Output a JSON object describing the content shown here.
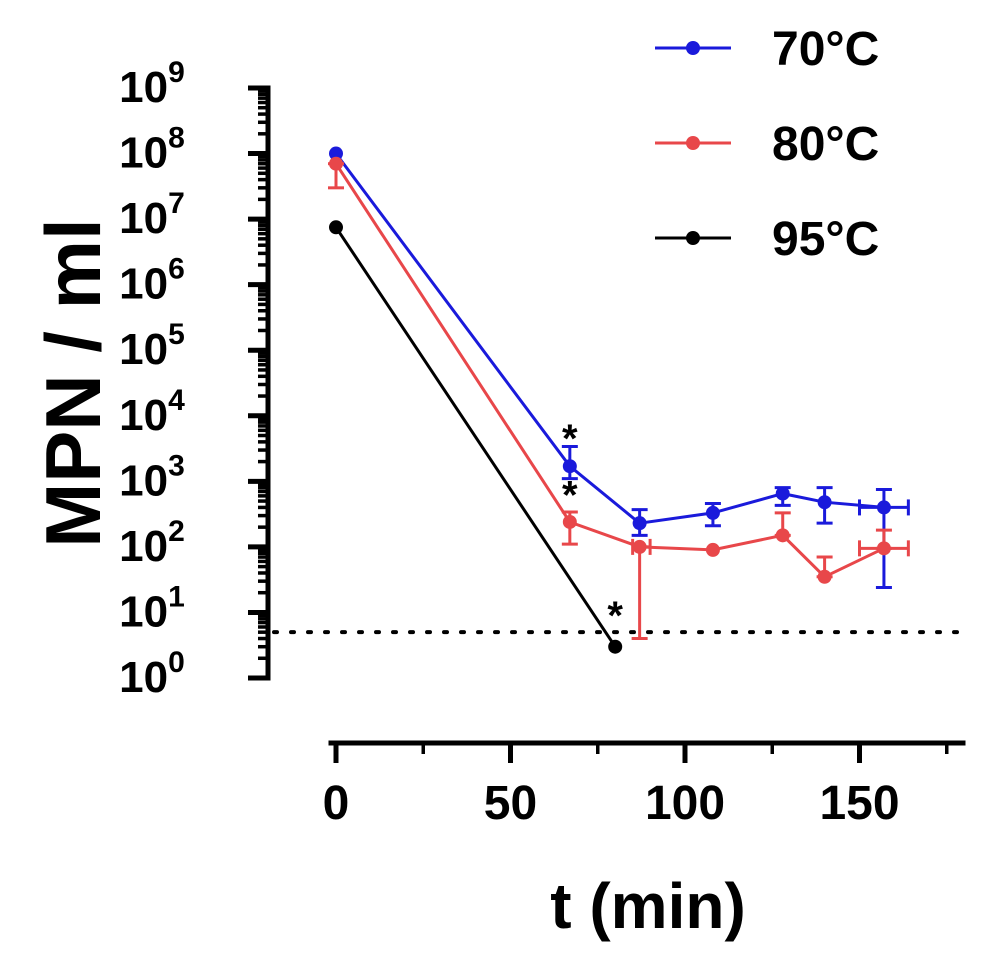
{
  "chart_data": {
    "type": "line",
    "xlabel": "t (min)",
    "ylabel": "MPN / ml",
    "xlim": [
      0,
      180
    ],
    "x_ticks": [
      0,
      50,
      100,
      150
    ],
    "y_scale": "log",
    "ylim": [
      1,
      1000000000
    ],
    "y_ticks": [
      {
        "base": "10",
        "exp": "0",
        "value": 1
      },
      {
        "base": "10",
        "exp": "1",
        "value": 10
      },
      {
        "base": "10",
        "exp": "2",
        "value": 100
      },
      {
        "base": "10",
        "exp": "3",
        "value": 1000
      },
      {
        "base": "10",
        "exp": "4",
        "value": 10000
      },
      {
        "base": "10",
        "exp": "5",
        "value": 100000
      },
      {
        "base": "10",
        "exp": "6",
        "value": 1000000
      },
      {
        "base": "10",
        "exp": "7",
        "value": 10000000
      },
      {
        "base": "10",
        "exp": "8",
        "value": 100000000
      },
      {
        "base": "10",
        "exp": "9",
        "value": 1000000000
      }
    ],
    "detection_limit": 5,
    "legend_position": "top-right",
    "series": [
      {
        "name": "70°C",
        "color": "#1a1adb",
        "points": [
          {
            "x": 0,
            "y": 100000000
          },
          {
            "x": 67,
            "y": 1700,
            "ylo": 1100,
            "yhi": 3400
          },
          {
            "x": 87,
            "y": 230,
            "ylo": 150,
            "yhi": 370
          },
          {
            "x": 108,
            "y": 330,
            "ylo": 210,
            "yhi": 460
          },
          {
            "x": 128,
            "y": 650,
            "ylo": 430,
            "yhi": 800
          },
          {
            "x": 140,
            "y": 480,
            "ylo": 230,
            "yhi": 800
          },
          {
            "x": 157,
            "y": 400,
            "ylo": 24,
            "yhi": 750,
            "xlo": 150,
            "xhi": 164
          }
        ]
      },
      {
        "name": "80°C",
        "color": "#e8474a",
        "points": [
          {
            "x": 0,
            "y": 70000000,
            "ylo": 30000000,
            "yhi": 70000000
          },
          {
            "x": 67,
            "y": 240,
            "ylo": 110,
            "yhi": 340
          },
          {
            "x": 87,
            "y": 100,
            "ylo": 4,
            "yhi": 100,
            "xlo": 85,
            "xhi": 90
          },
          {
            "x": 108,
            "y": 90
          },
          {
            "x": 128,
            "y": 150,
            "ylo": 150,
            "yhi": 330
          },
          {
            "x": 140,
            "y": 35,
            "ylo": 35,
            "yhi": 70
          },
          {
            "x": 157,
            "y": 95,
            "ylo": 95,
            "yhi": 180,
            "xlo": 150,
            "xhi": 164
          }
        ]
      },
      {
        "name": "95°C",
        "color": "#000000",
        "points": [
          {
            "x": 0,
            "y": 7500000
          },
          {
            "x": 80,
            "y": 3
          }
        ]
      }
    ],
    "annotations": [
      {
        "text": "*",
        "x": 67,
        "y": 6500
      },
      {
        "text": "*",
        "x": 67,
        "y": 900
      },
      {
        "text": "*",
        "x": 80,
        "y": 13
      }
    ]
  }
}
